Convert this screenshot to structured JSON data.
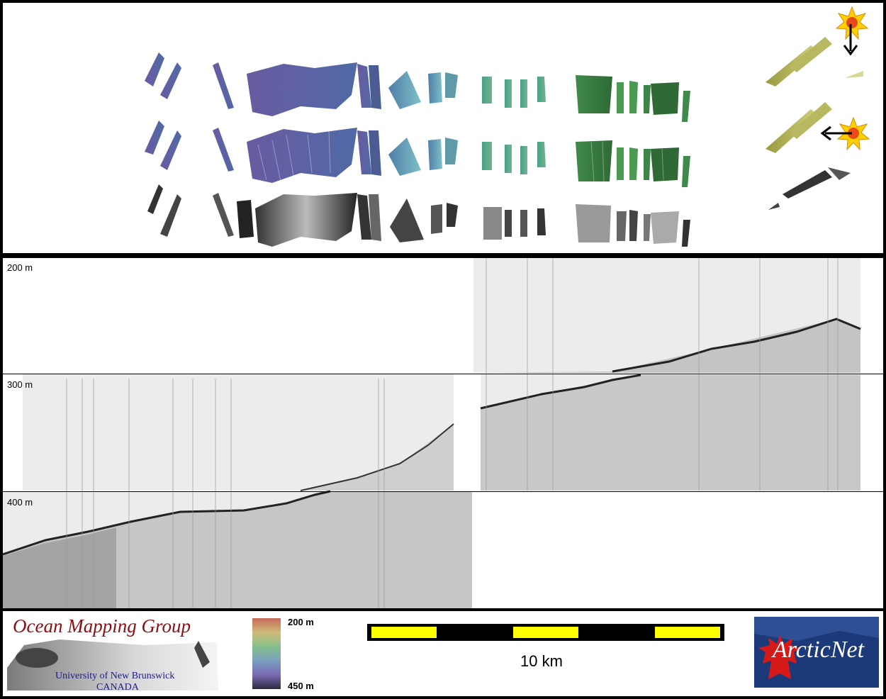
{
  "profile": {
    "depth_labels": [
      "200 m",
      "300 m",
      "400 m"
    ]
  },
  "logos": {
    "omg": {
      "title": "Ocean Mapping Group",
      "line1": "University of New Brunswick",
      "line2": "CANADA"
    },
    "arcticnet": {
      "text": "ArcticNet"
    }
  },
  "colorbar": {
    "top_label": "200 m",
    "bottom_label": "450 m"
  },
  "scalebar": {
    "label": "10 km",
    "colors": {
      "fill": "#ffff00",
      "background": "#000000"
    }
  },
  "icons": {
    "sun_icon": "sun-icon",
    "arrow_down": "arrow-down-icon",
    "arrow_left": "arrow-left-icon"
  },
  "colors": {
    "frame": "#000000",
    "omg_red": "#8b0f14",
    "arcticnet_blue": "#1c3a7a",
    "maple_red": "#d61a1a"
  }
}
